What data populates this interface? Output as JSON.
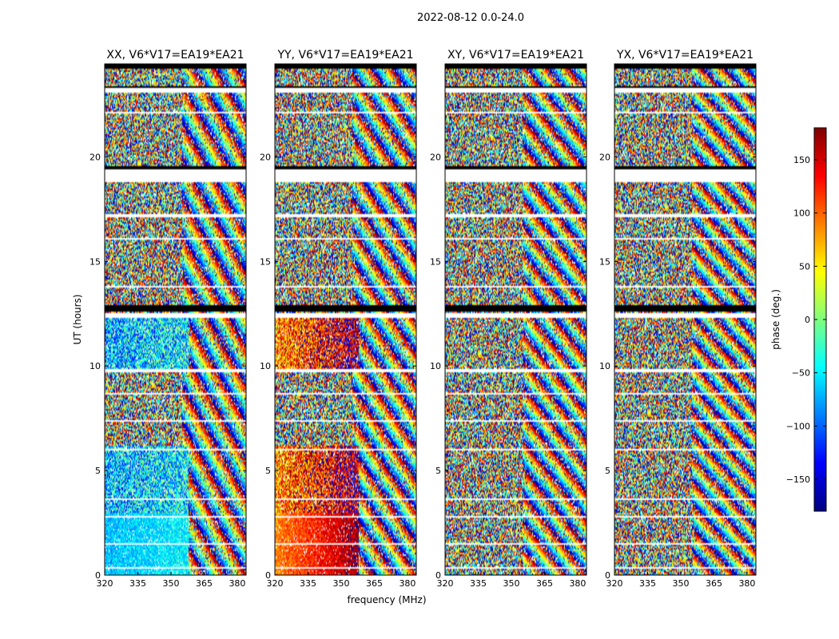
{
  "chart_data": {
    "type": "heatmap",
    "title": "2022-08-12 0.0-24.0",
    "xlabel": "frequency (MHz)",
    "ylabel": "UT (hours)",
    "xlim": [
      320,
      384
    ],
    "ylim": [
      0,
      24
    ],
    "xticks": [
      320,
      335,
      350,
      365,
      380
    ],
    "yticks": [
      0,
      5,
      10,
      15,
      20
    ],
    "grid": false,
    "panels": [
      {
        "title": "XX, V6*V17=EA19*EA21",
        "base_phase": -60,
        "coherent": true
      },
      {
        "title": "YY, V6*V17=EA19*EA21",
        "base_phase": 120,
        "coherent": true
      },
      {
        "title": "XY, V6*V17=EA19*EA21",
        "base_phase": 10,
        "coherent": false
      },
      {
        "title": "YX, V6*V17=EA19*EA21",
        "base_phase": -20,
        "coherent": false
      }
    ],
    "flagged_ut_ranges": [
      [
        0.32,
        0.4
      ],
      [
        1.42,
        1.5
      ],
      [
        2.78,
        2.84
      ],
      [
        3.62,
        3.7
      ],
      [
        5.95,
        6.05
      ],
      [
        7.35,
        7.42
      ],
      [
        8.6,
        8.68
      ],
      [
        9.72,
        9.85
      ],
      [
        12.3,
        12.55
      ],
      [
        13.75,
        13.85
      ],
      [
        16.05,
        16.12
      ],
      [
        17.1,
        17.25
      ],
      [
        18.8,
        19.45
      ],
      [
        22.05,
        22.12
      ],
      [
        23.1,
        23.3
      ]
    ],
    "black_ut_ranges": [
      [
        12.6,
        12.95
      ],
      [
        19.4,
        19.55
      ],
      [
        23.3,
        23.35
      ],
      [
        24.2,
        24.45
      ]
    ],
    "colorbar": {
      "label": "phase (deg.)",
      "min": -180,
      "max": 180,
      "ticks": [
        -150,
        -100,
        -50,
        0,
        50,
        100,
        150
      ],
      "tick_labels": [
        "−150",
        "−100",
        "−50",
        "0",
        "50",
        "100",
        "150"
      ],
      "colors": [
        "#00007f",
        "#0000ff",
        "#007fff",
        "#00ffff",
        "#7fff7f",
        "#ffff00",
        "#ff7f00",
        "#ff0000",
        "#7f0000"
      ]
    }
  }
}
